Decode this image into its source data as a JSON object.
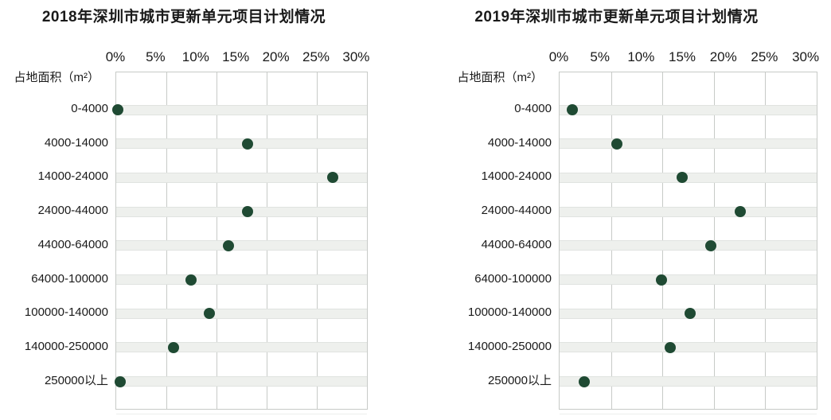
{
  "page": {
    "background": "#ffffff"
  },
  "colors": {
    "dot": "#1f4a33",
    "band_fill": "#eef0ed",
    "band_border": "#e0e3e0",
    "grid": "#c7cac7",
    "text": "#1a1a1a"
  },
  "chart_data": [
    {
      "type": "scatter",
      "variant": "horizontal-category-dot-plot",
      "title": "2018年深圳市城市更新单元项目计划情况",
      "ylabel": "占地面积（m²）",
      "xlabel": "",
      "x_ticks": [
        "0%",
        "5%",
        "10%",
        "15%",
        "20%",
        "25%",
        "30%"
      ],
      "x_tick_values": [
        0,
        5,
        10,
        15,
        20,
        25,
        30
      ],
      "xlim": [
        0,
        30
      ],
      "grid": "vertical",
      "legend": "none",
      "categories": [
        "0-4000",
        "4000-14000",
        "14000-24000",
        "24000-44000",
        "44000-64000",
        "64000-100000",
        "100000-140000",
        "140000-250000",
        "250000以上"
      ],
      "values_percent": [
        0.2,
        16.4,
        27.0,
        16.4,
        14.0,
        9.3,
        11.6,
        7.1,
        0.5
      ]
    },
    {
      "type": "scatter",
      "variant": "horizontal-category-dot-plot",
      "title": "2019年深圳市城市更新单元项目计划情况",
      "ylabel": "占地面积（m²）",
      "xlabel": "",
      "x_ticks": [
        "0%",
        "5%",
        "10%",
        "15%",
        "20%",
        "25%",
        "30%"
      ],
      "x_tick_values": [
        0,
        5,
        10,
        15,
        20,
        25,
        30
      ],
      "xlim": [
        0,
        30
      ],
      "grid": "vertical",
      "legend": "none",
      "categories": [
        "0-4000",
        "4000-14000",
        "14000-24000",
        "24000-44000",
        "44000-64000",
        "64000-100000",
        "100000-140000",
        "140000-250000",
        "250000以上"
      ],
      "values_percent": [
        1.5,
        7.0,
        14.9,
        22.0,
        18.4,
        12.4,
        15.9,
        13.4,
        3.0
      ]
    }
  ]
}
